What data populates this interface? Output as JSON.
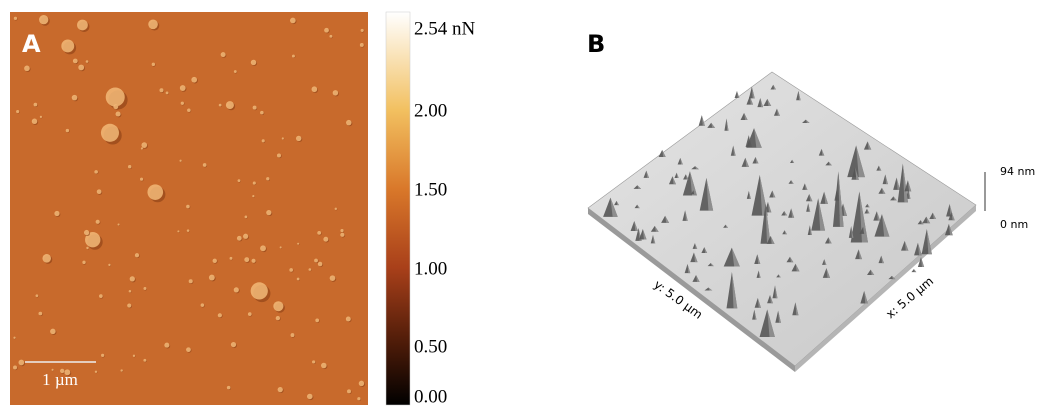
{
  "panel_a": {
    "label": "A",
    "scale_bar": "1 µm",
    "colorbar": {
      "labels": [
        "2.54 nN",
        "2.00",
        "1.50",
        "1.00",
        "0.50",
        "0.00"
      ]
    }
  },
  "panel_b": {
    "label": "B",
    "z_max": "94 nm",
    "z_min": "0 nm",
    "x_axis": "x: 5.0 µm",
    "y_axis": "y: 5.0 µm"
  }
}
